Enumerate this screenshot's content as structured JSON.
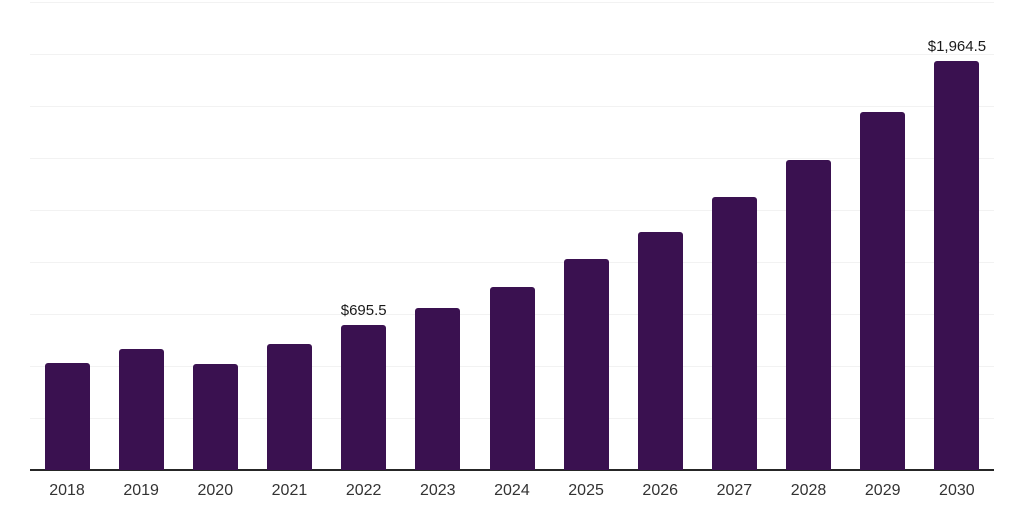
{
  "chart_data": {
    "type": "bar",
    "title": "",
    "xlabel": "",
    "ylabel": "",
    "categories": [
      "2018",
      "2019",
      "2020",
      "2021",
      "2022",
      "2023",
      "2024",
      "2025",
      "2026",
      "2027",
      "2028",
      "2029",
      "2030"
    ],
    "values": [
      514,
      581,
      510,
      606,
      695.5,
      779,
      880,
      1014,
      1144,
      1313,
      1491,
      1721,
      1964.5
    ],
    "data_labels": [
      {
        "category": "2022",
        "text": "$695.5"
      },
      {
        "category": "2030",
        "text": "$1,964.5"
      }
    ],
    "ylim": [
      0,
      2250
    ],
    "y_gridline_step": 250,
    "y_axis_tick_labels_visible": false,
    "grid": "horizontal",
    "legend_position": "none"
  },
  "style": {
    "bar_color": "#3A1150",
    "grid_color": "#F2F2F2",
    "axis_color": "#262626",
    "tick_label_color": "#333333",
    "data_label_color": "#1A1A1A",
    "background_color": "#FFFFFF"
  }
}
